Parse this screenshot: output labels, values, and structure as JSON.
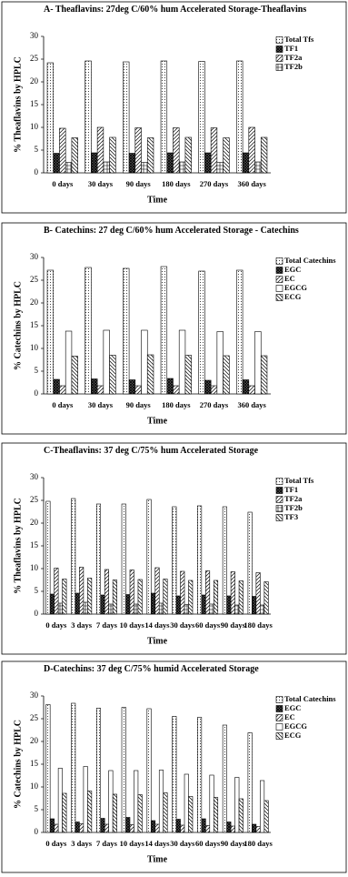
{
  "chart_data": [
    {
      "type": "bar",
      "title": "A- Theaflavins: 27deg C/60% hum Accelerated Storage-Theaflavins",
      "ylabel": "% Theaflavins by HPLC",
      "xlabel": "Time",
      "categories": [
        "0 days",
        "30 days",
        "90 days",
        "180 days",
        "270 days",
        "360 days"
      ],
      "ylim": [
        0,
        30
      ],
      "yticks": [
        0,
        5,
        10,
        15,
        20,
        25,
        30
      ],
      "series": [
        {
          "name": "Total Tfs",
          "pattern": "dots",
          "values": [
            24.2,
            24.6,
            24.4,
            24.6,
            24.5,
            24.6
          ]
        },
        {
          "name": "TF1",
          "pattern": "crosshatch",
          "values": [
            4.3,
            4.4,
            4.3,
            4.4,
            4.4,
            4.4
          ]
        },
        {
          "name": "TF2a",
          "pattern": "diagonal",
          "values": [
            9.8,
            10.0,
            9.9,
            9.9,
            9.9,
            10.0
          ]
        },
        {
          "name": "TF2b",
          "pattern": "cross",
          "values": [
            2.3,
            2.4,
            2.3,
            2.4,
            2.3,
            2.4
          ]
        },
        {
          "pattern": "backdiagonal",
          "values": [
            7.7,
            7.8,
            7.7,
            7.8,
            7.7,
            7.8
          ]
        }
      ]
    },
    {
      "type": "bar",
      "title": "B- Catechins: 27 deg C/60% hum Accelerated Storage - Catechins",
      "ylabel": "% Catechins by HPLC",
      "xlabel": "Time",
      "categories": [
        "0 days",
        "30 days",
        "90 days",
        "180 days",
        "270 days",
        "360 days"
      ],
      "ylim": [
        0,
        30
      ],
      "yticks": [
        0,
        5,
        10,
        15,
        20,
        25,
        30
      ],
      "series": [
        {
          "name": "Total Catechins",
          "pattern": "dots",
          "values": [
            27.2,
            27.8,
            27.6,
            28.0,
            27.0,
            27.2
          ]
        },
        {
          "name": "EGC",
          "pattern": "crosshatch",
          "values": [
            3.2,
            3.3,
            3.1,
            3.4,
            3.0,
            3.1
          ]
        },
        {
          "name": "EC",
          "pattern": "diagonal",
          "values": [
            1.8,
            1.8,
            1.8,
            1.8,
            1.8,
            1.8
          ]
        },
        {
          "name": "EGCG",
          "pattern": "plain",
          "values": [
            13.8,
            14.0,
            14.0,
            14.0,
            13.7,
            13.7
          ]
        },
        {
          "name": "ECG",
          "pattern": "backdiagonal",
          "values": [
            8.3,
            8.5,
            8.6,
            8.5,
            8.4,
            8.4
          ]
        }
      ]
    },
    {
      "type": "bar",
      "title": "C-Theaflavins: 37 deg C/75% hum Accelerated Storage",
      "ylabel": "% Theaflavins by HPLC",
      "xlabel": "Time",
      "categories": [
        "0 days",
        "3 days",
        "7 days",
        "10 days",
        "14 days",
        "30 days",
        "60 days",
        "90 days",
        "180 days"
      ],
      "ylim": [
        0,
        30
      ],
      "yticks": [
        0,
        5,
        10,
        15,
        20,
        25,
        30
      ],
      "series": [
        {
          "name": "Total Tfs",
          "pattern": "dots",
          "values": [
            24.8,
            25.4,
            24.2,
            24.2,
            25.2,
            23.6,
            23.8,
            23.6,
            22.4
          ]
        },
        {
          "name": "TF1",
          "pattern": "crosshatch",
          "values": [
            4.4,
            4.6,
            4.2,
            4.3,
            4.6,
            4.0,
            4.2,
            4.0,
            3.9
          ]
        },
        {
          "name": "TF2a",
          "pattern": "diagonal",
          "values": [
            10.1,
            10.3,
            9.8,
            9.7,
            10.2,
            9.4,
            9.5,
            9.3,
            9.1
          ]
        },
        {
          "name": "TF2b",
          "pattern": "cross",
          "values": [
            2.4,
            2.6,
            2.2,
            2.2,
            2.4,
            2.1,
            2.2,
            2.0,
            2.0
          ]
        },
        {
          "name": "TF3",
          "pattern": "backdiagonal",
          "values": [
            7.7,
            7.9,
            7.5,
            7.6,
            7.7,
            7.4,
            7.4,
            7.3,
            7.1
          ]
        }
      ]
    },
    {
      "type": "bar",
      "title": "D-Catechins: 37 deg C/75% humid Accelerated Storage",
      "ylabel": "% Catechins by HPLC",
      "xlabel": "Time",
      "categories": [
        "0 days",
        "3 days",
        "7 days",
        "10 days",
        "14 days",
        "30 days",
        "60 days",
        "90 days",
        "180 days"
      ],
      "ylim": [
        0,
        30
      ],
      "yticks": [
        0,
        5,
        10,
        15,
        20,
        25,
        30
      ],
      "series": [
        {
          "name": "Total Catechins",
          "pattern": "dots",
          "values": [
            28.1,
            28.4,
            27.3,
            27.5,
            27.2,
            25.5,
            25.3,
            23.6,
            21.9
          ]
        },
        {
          "name": "EGC",
          "pattern": "crosshatch",
          "values": [
            3.0,
            2.3,
            3.1,
            3.3,
            2.6,
            2.9,
            3.0,
            2.3,
            1.8
          ]
        },
        {
          "name": "EC",
          "pattern": "diagonal",
          "values": [
            1.8,
            1.9,
            1.8,
            1.7,
            1.8,
            1.6,
            1.5,
            1.4,
            1.3
          ]
        },
        {
          "name": "EGCG",
          "pattern": "plain",
          "values": [
            14.1,
            14.5,
            13.6,
            13.6,
            13.7,
            12.8,
            12.6,
            12.1,
            11.4
          ]
        },
        {
          "name": "ECG",
          "pattern": "backdiagonal",
          "values": [
            8.6,
            9.1,
            8.4,
            8.3,
            8.7,
            7.9,
            7.7,
            7.4,
            7.0
          ]
        }
      ]
    }
  ]
}
